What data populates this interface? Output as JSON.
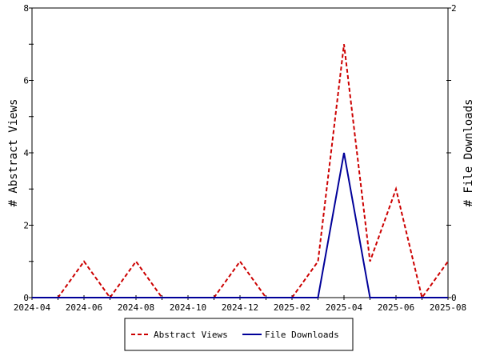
{
  "chart_data": {
    "type": "line",
    "title": "",
    "xlabel": "",
    "ylabel": "# Abstract Views",
    "y2label": "# File Downloads",
    "x": [
      "2024-04",
      "2024-05",
      "2024-06",
      "2024-07",
      "2024-08",
      "2024-09",
      "2024-10",
      "2024-11",
      "2024-12",
      "2025-01",
      "2025-02",
      "2025-03",
      "2025-04",
      "2025-05",
      "2025-06",
      "2025-07",
      "2025-08"
    ],
    "x_tick_labels": [
      "2024-04",
      "2024-06",
      "2024-08",
      "2024-10",
      "2024-12",
      "2025-02",
      "2025-04",
      "2025-06",
      "2025-08"
    ],
    "ylim": [
      0,
      8
    ],
    "y_ticks": [
      "0",
      "2",
      "4",
      "6",
      "8"
    ],
    "y2lim": [
      0,
      2
    ],
    "y2_ticks": [
      "0",
      "2"
    ],
    "grid": false,
    "legend_placement": "bottom",
    "series": [
      {
        "name": "Abstract Views",
        "axis": "left",
        "color": "#cc0000",
        "dash": "dashed",
        "values": [
          0,
          0,
          1,
          0,
          1,
          0,
          0,
          0,
          1,
          0,
          0,
          1,
          7,
          1,
          3,
          0,
          1
        ]
      },
      {
        "name": "File Downloads",
        "axis": "right",
        "color": "#000099",
        "dash": "solid",
        "values": [
          0,
          0,
          0,
          0,
          0,
          0,
          0,
          0,
          0,
          0,
          0,
          0,
          1,
          0,
          0,
          0,
          0
        ]
      }
    ]
  }
}
